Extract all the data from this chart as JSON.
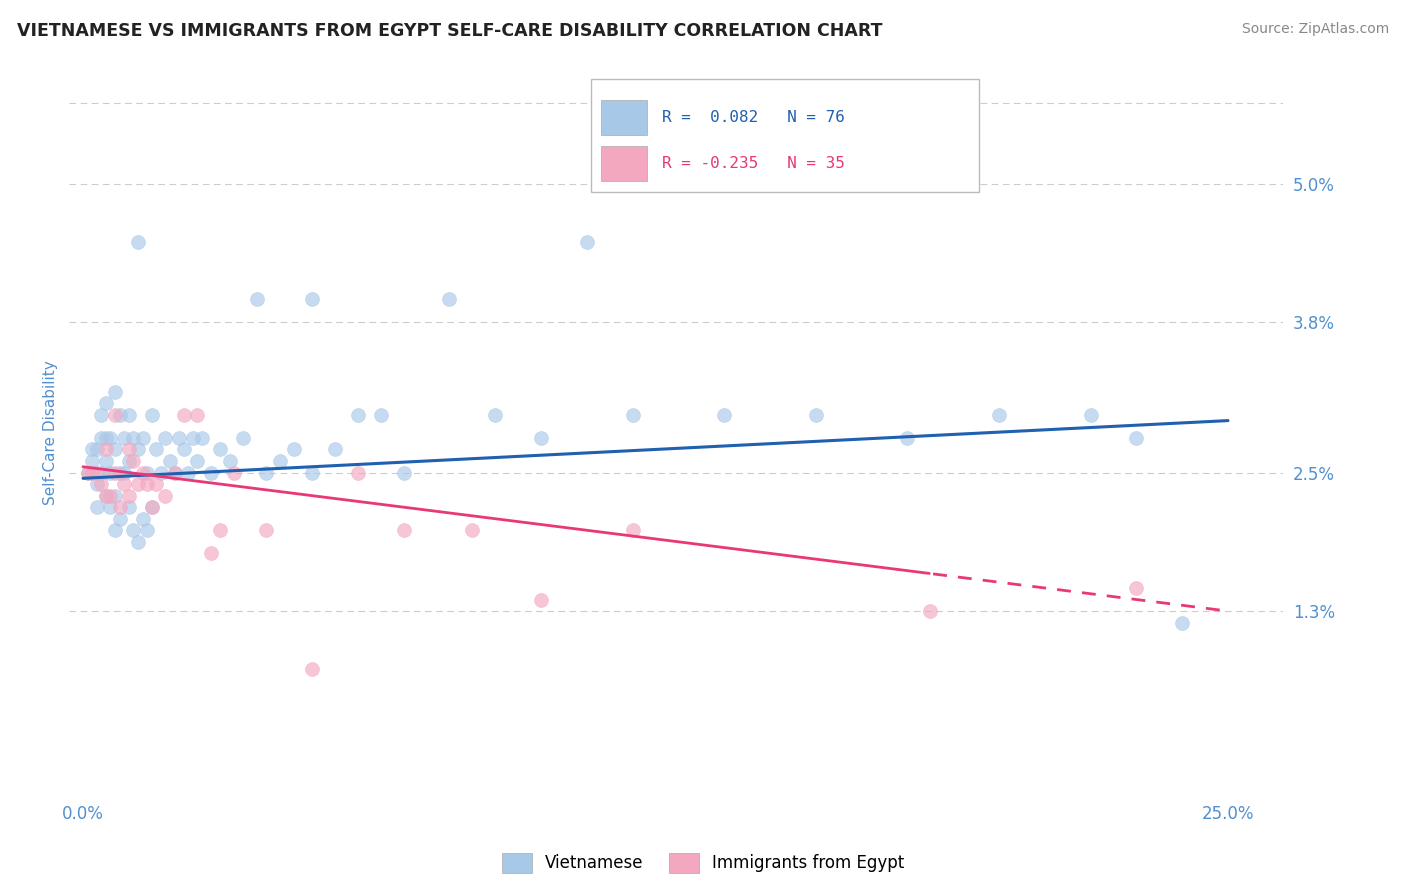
{
  "title": "VIETNAMESE VS IMMIGRANTS FROM EGYPT SELF-CARE DISABILITY CORRELATION CHART",
  "source": "Source: ZipAtlas.com",
  "ylabel": "Self-Care Disability",
  "yticks": [
    0.013,
    0.025,
    0.038,
    0.05
  ],
  "ytick_labels": [
    "1.3%",
    "2.5%",
    "3.8%",
    "5.0%"
  ],
  "xlim": [
    -0.003,
    0.262
  ],
  "ylim": [
    -0.003,
    0.06
  ],
  "legend_label1": "Vietnamese",
  "legend_label2": "Immigrants from Egypt",
  "blue_color": "#a8c8e8",
  "pink_color": "#f4a8c0",
  "trend_blue": "#2060b0",
  "trend_pink": "#e83878",
  "axis_tick_color": "#5090d0",
  "grid_color": "#cccccc",
  "title_color": "#222222",
  "source_color": "#888888",
  "viet_trend_x0": 0.0,
  "viet_trend_y0": 0.0245,
  "viet_trend_x1": 0.25,
  "viet_trend_y1": 0.0295,
  "egypt_trend_x0": 0.0,
  "egypt_trend_y0": 0.0255,
  "egypt_trend_x1": 0.25,
  "egypt_trend_y1": 0.013,
  "egypt_dash_split": 0.185,
  "viet_x": [
    0.001,
    0.002,
    0.002,
    0.003,
    0.003,
    0.003,
    0.004,
    0.004,
    0.004,
    0.005,
    0.005,
    0.005,
    0.005,
    0.006,
    0.006,
    0.006,
    0.007,
    0.007,
    0.007,
    0.007,
    0.008,
    0.008,
    0.008,
    0.009,
    0.009,
    0.01,
    0.01,
    0.01,
    0.011,
    0.011,
    0.012,
    0.012,
    0.013,
    0.013,
    0.014,
    0.014,
    0.015,
    0.015,
    0.016,
    0.017,
    0.018,
    0.019,
    0.02,
    0.021,
    0.022,
    0.023,
    0.024,
    0.025,
    0.026,
    0.028,
    0.03,
    0.032,
    0.035,
    0.038,
    0.04,
    0.043,
    0.046,
    0.05,
    0.055,
    0.06,
    0.065,
    0.07,
    0.08,
    0.09,
    0.1,
    0.11,
    0.12,
    0.14,
    0.16,
    0.18,
    0.2,
    0.22,
    0.23,
    0.24,
    0.012,
    0.05
  ],
  "viet_y": [
    0.025,
    0.026,
    0.027,
    0.022,
    0.024,
    0.027,
    0.025,
    0.028,
    0.03,
    0.023,
    0.026,
    0.028,
    0.031,
    0.022,
    0.025,
    0.028,
    0.02,
    0.023,
    0.027,
    0.032,
    0.021,
    0.025,
    0.03,
    0.025,
    0.028,
    0.022,
    0.026,
    0.03,
    0.02,
    0.028,
    0.019,
    0.027,
    0.021,
    0.028,
    0.02,
    0.025,
    0.022,
    0.03,
    0.027,
    0.025,
    0.028,
    0.026,
    0.025,
    0.028,
    0.027,
    0.025,
    0.028,
    0.026,
    0.028,
    0.025,
    0.027,
    0.026,
    0.028,
    0.04,
    0.025,
    0.026,
    0.027,
    0.025,
    0.027,
    0.03,
    0.03,
    0.025,
    0.04,
    0.03,
    0.028,
    0.045,
    0.03,
    0.03,
    0.03,
    0.028,
    0.03,
    0.03,
    0.028,
    0.012,
    0.045,
    0.04
  ],
  "egypt_x": [
    0.001,
    0.002,
    0.003,
    0.004,
    0.005,
    0.005,
    0.006,
    0.007,
    0.007,
    0.008,
    0.009,
    0.01,
    0.01,
    0.011,
    0.012,
    0.013,
    0.014,
    0.015,
    0.016,
    0.018,
    0.02,
    0.022,
    0.025,
    0.028,
    0.03,
    0.033,
    0.04,
    0.05,
    0.06,
    0.07,
    0.085,
    0.1,
    0.12,
    0.185,
    0.23
  ],
  "egypt_y": [
    0.025,
    0.025,
    0.025,
    0.024,
    0.023,
    0.027,
    0.023,
    0.025,
    0.03,
    0.022,
    0.024,
    0.023,
    0.027,
    0.026,
    0.024,
    0.025,
    0.024,
    0.022,
    0.024,
    0.023,
    0.025,
    0.03,
    0.03,
    0.018,
    0.02,
    0.025,
    0.02,
    0.008,
    0.025,
    0.02,
    0.02,
    0.014,
    0.02,
    0.013,
    0.015
  ]
}
